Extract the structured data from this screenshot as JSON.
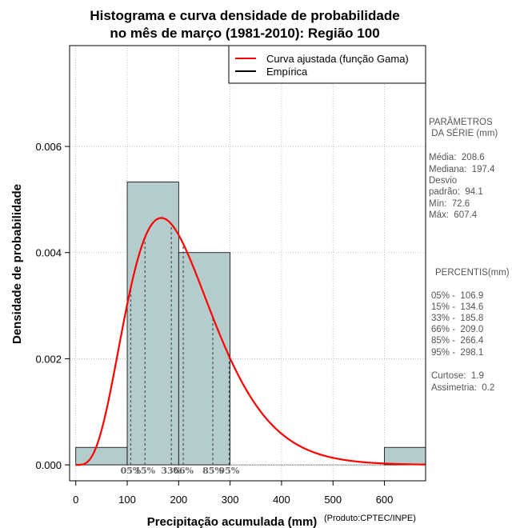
{
  "chart_data": {
    "type": "histogram",
    "title_lines": [
      "Histograma e curva densidade de probabilidade",
      "no mês de março (1981-2010): Região 100"
    ],
    "xlabel": "Precipitação acumulada (mm)",
    "ylabel": "Densidade de probabilidade",
    "source_note": "(Produto:CPTEC/INPE)",
    "xlim": [
      -12,
      680
    ],
    "ylim": [
      -0.0003,
      0.0079
    ],
    "x_ticks": [
      0,
      100,
      200,
      300,
      400,
      500,
      600
    ],
    "y_ticks": [
      0.0,
      0.002,
      0.004,
      0.006
    ],
    "y_tick_labels": [
      "0.000",
      "0.002",
      "0.004",
      "0.006"
    ],
    "grid": true,
    "bins": [
      {
        "start": 0,
        "end": 100,
        "density": 0.00033
      },
      {
        "start": 100,
        "end": 200,
        "density": 0.00533
      },
      {
        "start": 200,
        "end": 300,
        "density": 0.004
      },
      {
        "start": 300,
        "end": 400,
        "density": 0
      },
      {
        "start": 400,
        "end": 500,
        "density": 0
      },
      {
        "start": 500,
        "end": 600,
        "density": 0
      },
      {
        "start": 600,
        "end": 700,
        "density": 0.00033
      }
    ],
    "bar_color": "#b4cccb",
    "curve_color": "#ff0000",
    "gamma_fit": {
      "shape": 4.92,
      "scale": 42.4
    },
    "percentiles": [
      {
        "label": "05%",
        "value": 106.9
      },
      {
        "label": "15%",
        "value": 134.6
      },
      {
        "label": "33%",
        "value": 185.8
      },
      {
        "label": "66%",
        "value": 209.0
      },
      {
        "label": "85%",
        "value": 266.4
      },
      {
        "label": "95%",
        "value": 298.1
      }
    ],
    "legend": {
      "position": "top-right",
      "entries": [
        {
          "label": "Curva ajustada (função Gama)",
          "color": "#ff0000"
        },
        {
          "label": "Empírica",
          "color": "#000000"
        }
      ]
    }
  },
  "side_panel": {
    "params_title": [
      "PARÂMETROS",
      " DA SÉRIE (mm)"
    ],
    "params": [
      "Média:  208.6",
      "Mediana:  197.4",
      "Desvio",
      "padrão:  94.1",
      "Mín:  72.6",
      "Máx:  607.4"
    ],
    "percentis_title": "PERCENTIS(mm)",
    "percentis": [
      "05% -  106.9",
      "15% -  134.6",
      "33% -  185.8",
      "66% -  209.0",
      "85% -  266.4",
      "95% -  298.1"
    ],
    "extras": [
      "Curtose:  1.9",
      "Assimetria:  0.2"
    ]
  }
}
